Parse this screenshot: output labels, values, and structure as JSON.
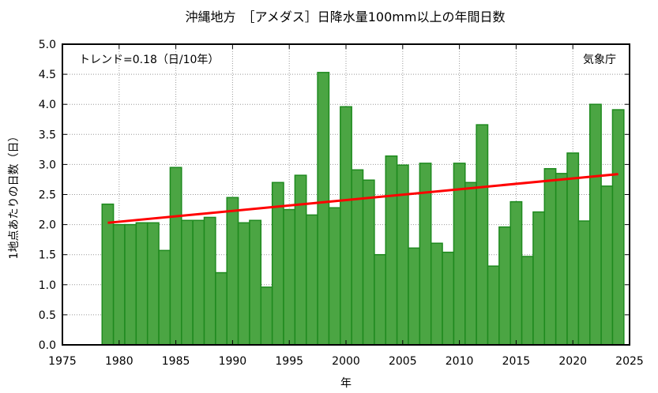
{
  "chart_data": {
    "type": "bar",
    "title": "沖縄地方　［アメダス］日降水量100mm以上の年間日数",
    "xlabel": "年",
    "ylabel": "1地点あたりの日数（日）",
    "trend_label": "トレンド=0.18（日/10年）",
    "source_label": "気象庁",
    "xlim": [
      1975,
      2025
    ],
    "ylim": [
      0,
      5
    ],
    "xticks": [
      "1975",
      "1980",
      "1985",
      "1990",
      "1995",
      "2000",
      "2005",
      "2010",
      "2015",
      "2020",
      "2025"
    ],
    "yticks": [
      "0.0",
      "0.5",
      "1.0",
      "1.5",
      "2.0",
      "2.5",
      "3.0",
      "3.5",
      "4.0",
      "4.5",
      "5.0"
    ],
    "grid": true,
    "x": [
      1979,
      1980,
      1981,
      1982,
      1983,
      1984,
      1985,
      1986,
      1987,
      1988,
      1989,
      1990,
      1991,
      1992,
      1993,
      1994,
      1995,
      1996,
      1997,
      1998,
      1999,
      2000,
      2001,
      2002,
      2003,
      2004,
      2005,
      2006,
      2007,
      2008,
      2009,
      2010,
      2011,
      2012,
      2013,
      2014,
      2015,
      2016,
      2017,
      2018,
      2019,
      2020,
      2021,
      2022,
      2023,
      2024
    ],
    "values": [
      2.34,
      2.0,
      2.0,
      2.03,
      2.03,
      1.57,
      2.95,
      2.07,
      2.07,
      2.12,
      1.2,
      2.45,
      2.03,
      2.07,
      0.96,
      2.7,
      2.25,
      2.82,
      2.16,
      4.53,
      2.28,
      3.96,
      2.91,
      2.74,
      1.5,
      3.14,
      2.99,
      1.61,
      3.02,
      1.69,
      1.54,
      3.02,
      2.7,
      3.66,
      1.31,
      1.96,
      2.38,
      1.47,
      2.21,
      2.93,
      2.85,
      3.19,
      2.06,
      4.0,
      2.64,
      3.91
    ],
    "trend": {
      "x": [
        1979,
        2024
      ],
      "y": [
        2.03,
        2.84
      ]
    },
    "colors": {
      "bar_fill": "#4ba543",
      "bar_edge": "#1e8a1e",
      "trend": "#ff0000"
    }
  }
}
